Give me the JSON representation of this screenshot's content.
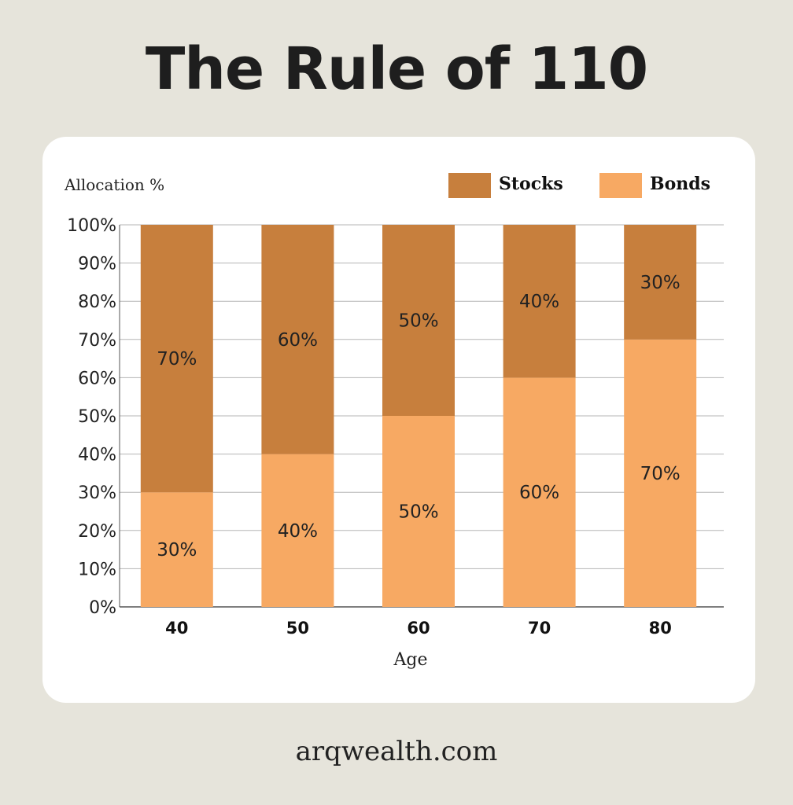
{
  "title": "The Rule of 110",
  "footer": "arqwealth.com",
  "colors": {
    "background": "#e6e4db",
    "card": "#ffffff",
    "stocks": "#c77f3d",
    "bonds": "#f7a963",
    "grid": "#b5b5b5",
    "text": "#222222"
  },
  "chart_data": {
    "type": "bar",
    "stacked": true,
    "categories": [
      "40",
      "50",
      "60",
      "70",
      "80"
    ],
    "series": [
      {
        "name": "Bonds",
        "values": [
          30,
          40,
          50,
          60,
          70
        ],
        "color": "#f7a963"
      },
      {
        "name": "Stocks",
        "values": [
          70,
          60,
          50,
          40,
          30
        ],
        "color": "#c77f3d"
      }
    ],
    "data_labels": {
      "Bonds": [
        "30%",
        "40%",
        "50%",
        "60%",
        "70%"
      ],
      "Stocks": [
        "70%",
        "60%",
        "50%",
        "40%",
        "30%"
      ]
    },
    "legend": [
      {
        "name": "Stocks",
        "color": "#c77f3d"
      },
      {
        "name": "Bonds",
        "color": "#f7a963"
      }
    ],
    "legend_position": "top-right",
    "xlabel": "Age",
    "ylabel": "Allocation %",
    "ylim": [
      0,
      100
    ],
    "yticks": [
      "0%",
      "10%",
      "20%",
      "30%",
      "40%",
      "50%",
      "60%",
      "70%",
      "80%",
      "90%",
      "100%"
    ],
    "grid": true
  }
}
